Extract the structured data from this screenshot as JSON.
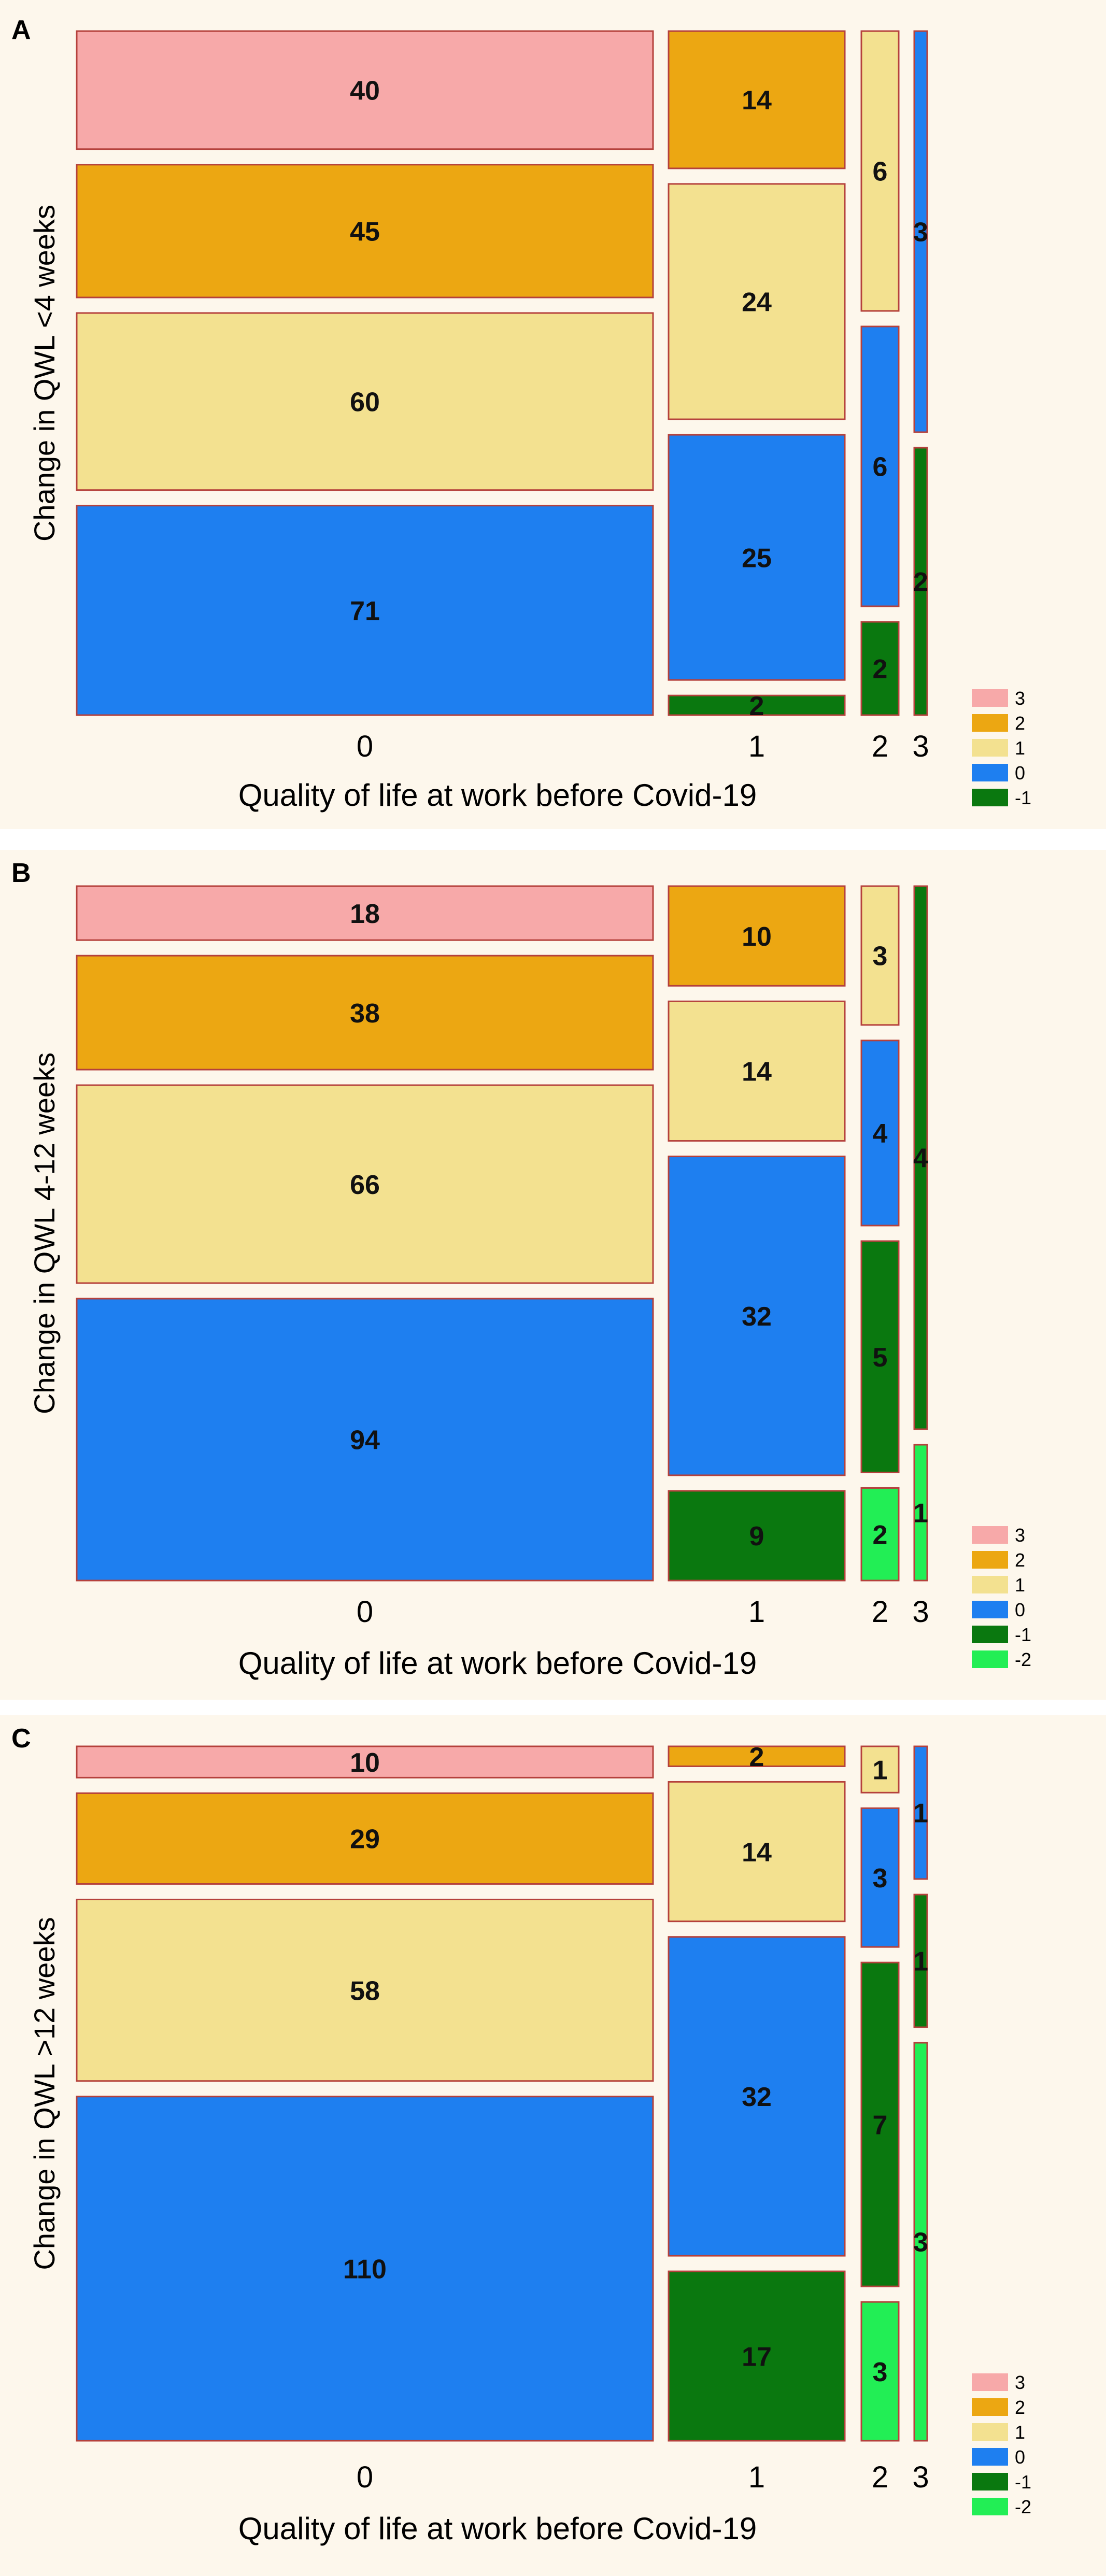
{
  "colors": {
    "background": "#fdf7ec",
    "border": "#b5413c",
    "3": "#f7a9a9",
    "2": "#eca712",
    "1": "#f3e190",
    "0": "#1e7ff0",
    "-1": "#0a780f",
    "-2": "#22ee55"
  },
  "chart_data": [
    {
      "type": "mosaic",
      "panel_label": "A",
      "ylabel": "Change in QWL <4 weeks",
      "xlabel": "Quality of life at work before Covid-19",
      "categories": [
        "0",
        "1",
        "2",
        "3"
      ],
      "columns": [
        {
          "x": "0",
          "cells": [
            {
              "level": "3",
              "count": 40
            },
            {
              "level": "2",
              "count": 45
            },
            {
              "level": "1",
              "count": 60
            },
            {
              "level": "0",
              "count": 71
            }
          ]
        },
        {
          "x": "1",
          "cells": [
            {
              "level": "2",
              "count": 14
            },
            {
              "level": "1",
              "count": 24
            },
            {
              "level": "0",
              "count": 25
            },
            {
              "level": "-1",
              "count": 2
            }
          ]
        },
        {
          "x": "2",
          "cells": [
            {
              "level": "1",
              "count": 6
            },
            {
              "level": "0",
              "count": 6
            },
            {
              "level": "-1",
              "count": 2
            }
          ]
        },
        {
          "x": "3",
          "cells": [
            {
              "level": "0",
              "count": 3
            },
            {
              "level": "-1",
              "count": 2
            }
          ]
        }
      ],
      "legend": [
        "3",
        "2",
        "1",
        "0",
        "-1"
      ],
      "legend_position": "bottom-right"
    },
    {
      "type": "mosaic",
      "panel_label": "B",
      "ylabel": "Change in QWL 4-12 weeks",
      "xlabel": "Quality of life at work before Covid-19",
      "categories": [
        "0",
        "1",
        "2",
        "3"
      ],
      "columns": [
        {
          "x": "0",
          "cells": [
            {
              "level": "3",
              "count": 18
            },
            {
              "level": "2",
              "count": 38
            },
            {
              "level": "1",
              "count": 66
            },
            {
              "level": "0",
              "count": 94
            }
          ]
        },
        {
          "x": "1",
          "cells": [
            {
              "level": "2",
              "count": 10
            },
            {
              "level": "1",
              "count": 14
            },
            {
              "level": "0",
              "count": 32
            },
            {
              "level": "-1",
              "count": 9
            }
          ]
        },
        {
          "x": "2",
          "cells": [
            {
              "level": "1",
              "count": 3
            },
            {
              "level": "0",
              "count": 4
            },
            {
              "level": "-1",
              "count": 5
            },
            {
              "level": "-2",
              "count": 2
            }
          ]
        },
        {
          "x": "3",
          "cells": [
            {
              "level": "-1",
              "count": 4
            },
            {
              "level": "-2",
              "count": 1
            }
          ]
        }
      ],
      "legend": [
        "3",
        "2",
        "1",
        "0",
        "-1",
        "-2"
      ],
      "legend_position": "bottom-right"
    },
    {
      "type": "mosaic",
      "panel_label": "C",
      "ylabel": "Change in QWL >12 weeks",
      "xlabel": "Quality of life at work before Covid-19",
      "categories": [
        "0",
        "1",
        "2",
        "3"
      ],
      "columns": [
        {
          "x": "0",
          "cells": [
            {
              "level": "3",
              "count": 10
            },
            {
              "level": "2",
              "count": 29
            },
            {
              "level": "1",
              "count": 58
            },
            {
              "level": "0",
              "count": 110
            }
          ]
        },
        {
          "x": "1",
          "cells": [
            {
              "level": "2",
              "count": 2
            },
            {
              "level": "1",
              "count": 14
            },
            {
              "level": "0",
              "count": 32
            },
            {
              "level": "-1",
              "count": 17
            }
          ]
        },
        {
          "x": "2",
          "cells": [
            {
              "level": "1",
              "count": 1
            },
            {
              "level": "0",
              "count": 3
            },
            {
              "level": "-1",
              "count": 7
            },
            {
              "level": "-2",
              "count": 3
            }
          ]
        },
        {
          "x": "3",
          "cells": [
            {
              "level": "0",
              "count": 1
            },
            {
              "level": "-1",
              "count": 1
            },
            {
              "level": "-2",
              "count": 3
            }
          ]
        }
      ],
      "legend": [
        "3",
        "2",
        "1",
        "0",
        "-1",
        "-2"
      ],
      "legend_position": "bottom-right"
    }
  ]
}
